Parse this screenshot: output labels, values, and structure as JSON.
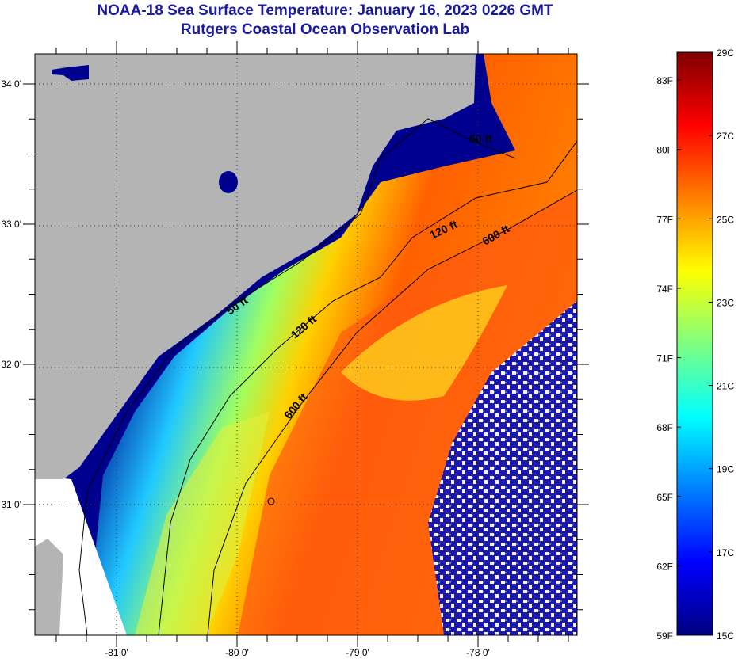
{
  "header": {
    "title": "NOAA-18 Sea Surface Temperature:  January 16, 2023 0226 GMT",
    "subtitle": "Rutgers Coastal Ocean Observation Lab"
  },
  "axes": {
    "lat_labels": [
      "34 0'",
      "33 0'",
      "32 0'",
      "31 0'"
    ],
    "lat_values": [
      34,
      33,
      32,
      31
    ],
    "lon_labels": [
      "-81 0'",
      "-80 0'",
      "-79 0'",
      "-78 0'"
    ],
    "lon_values": [
      -81,
      -80,
      -79,
      -78
    ]
  },
  "contours": {
    "labels": [
      "50 ft",
      "50 ft",
      "120 ft",
      "120 ft",
      "600 ft",
      "600 ft"
    ]
  },
  "colorbar": {
    "f_labels": [
      "83F",
      "80F",
      "77F",
      "74F",
      "71F",
      "68F",
      "65F",
      "62F",
      "59F"
    ],
    "c_labels": [
      "29C",
      "27C",
      "25C",
      "23C",
      "21C",
      "19C",
      "17C",
      "15C"
    ],
    "min_c": 15,
    "max_c": 29,
    "colors": [
      "#00007f",
      "#0000ff",
      "#007fff",
      "#00ffff",
      "#7fff7f",
      "#ffff00",
      "#ff7f00",
      "#ff0000",
      "#7f0000"
    ]
  },
  "colors": {
    "land": "#b4b4b4",
    "title": "#1a1aa0",
    "nodata": "#ffffff"
  }
}
